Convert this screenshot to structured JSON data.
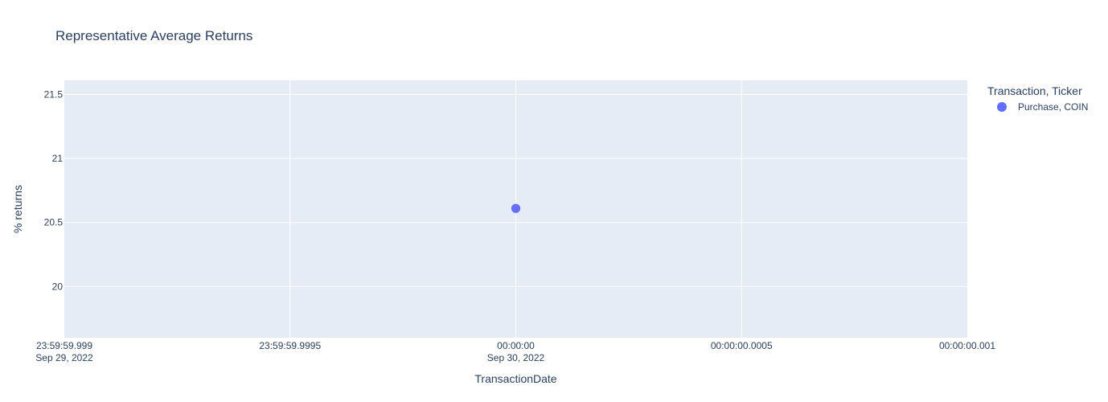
{
  "chart_data": {
    "type": "scatter",
    "title": "Representative Average Returns",
    "xlabel": "TransactionDate",
    "ylabel": "% returns",
    "x_ticks": [
      {
        "value": -0.001,
        "line1": "23:59:59.999",
        "line2": "Sep 29, 2022"
      },
      {
        "value": -0.0005,
        "line1": "23:59:59.9995",
        "line2": ""
      },
      {
        "value": 0,
        "line1": "00:00:00",
        "line2": "Sep 30, 2022"
      },
      {
        "value": 0.0005,
        "line1": "00:00:00.0005",
        "line2": ""
      },
      {
        "value": 0.001,
        "line1": "00:00:00.001",
        "line2": ""
      }
    ],
    "y_ticks": [
      {
        "value": 20,
        "label": "20"
      },
      {
        "value": 20.5,
        "label": "20.5"
      },
      {
        "value": 21,
        "label": "21"
      },
      {
        "value": 21.5,
        "label": "21.5"
      }
    ],
    "xlim": [
      -0.001,
      0.001
    ],
    "ylim": [
      19.6,
      21.61
    ],
    "grid": true,
    "legend": {
      "title": "Transaction, Ticker",
      "placement": "right"
    },
    "series": [
      {
        "name": "Purchase, COIN",
        "color": "#636efa",
        "points": [
          {
            "x": 0,
            "y": 20.61
          }
        ]
      }
    ],
    "colors": {
      "plot_background": "#e5ecf6",
      "gridline": "#ffffff",
      "text": "#2a3f5f",
      "title_text": "#444444"
    }
  }
}
